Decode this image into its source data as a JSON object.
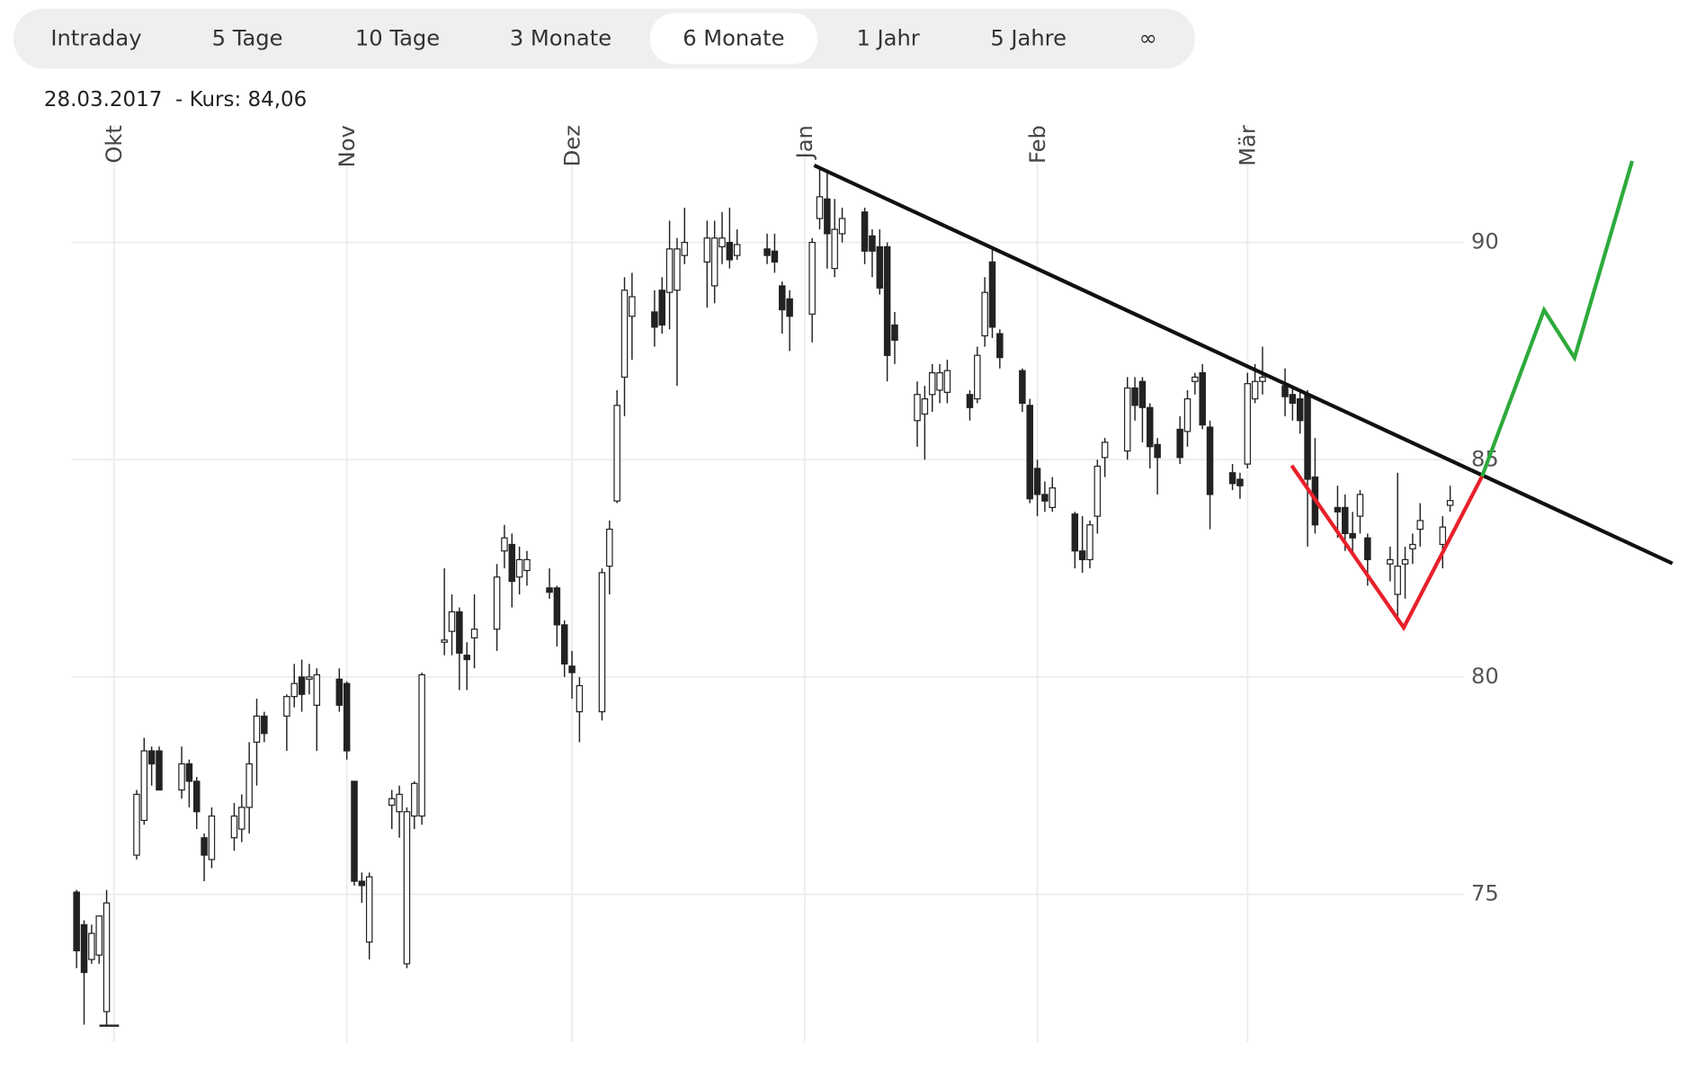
{
  "tabs": [
    "Intraday",
    "5 Tage",
    "10 Tage",
    "3 Monate",
    "6 Monate",
    "1 Jahr",
    "5 Jahre",
    "∞"
  ],
  "active_tab": 4,
  "info": "28.03.2017  - Kurs: 84,06",
  "chart_data": {
    "type": "candlestick",
    "categories": [
      null,
      null,
      null,
      null,
      null,
      "Okt",
      null,
      null,
      null,
      null,
      null,
      null,
      null,
      null,
      null,
      null,
      null,
      null,
      null,
      null,
      null,
      null,
      null,
      null,
      null,
      null,
      null,
      null,
      null,
      null,
      null,
      null,
      null,
      null,
      null,
      null,
      "Nov",
      null,
      null,
      null,
      null,
      null,
      null,
      null,
      null,
      null,
      null,
      null,
      null,
      null,
      null,
      null,
      null,
      null,
      null,
      null,
      null,
      null,
      null,
      null,
      null,
      null,
      null,
      null,
      null,
      null,
      "Dez",
      null,
      null,
      null,
      null,
      null,
      null,
      null,
      null,
      null,
      null,
      null,
      null,
      null,
      null,
      null,
      null,
      null,
      null,
      null,
      null,
      null,
      null,
      null,
      null,
      null,
      null,
      null,
      null,
      null,
      null,
      "Jan",
      null,
      null,
      null,
      null,
      null,
      null,
      null,
      null,
      null,
      null,
      null,
      null,
      null,
      null,
      null,
      null,
      null,
      null,
      null,
      null,
      null,
      null,
      null,
      null,
      null,
      null,
      null,
      null,
      null,
      null,
      "Feb",
      null,
      null,
      null,
      null,
      null,
      null,
      null,
      null,
      null,
      null,
      null,
      null,
      null,
      null,
      null,
      null,
      null,
      null,
      null,
      null,
      null,
      null,
      null,
      null,
      null,
      null,
      null,
      "Mär",
      null,
      null,
      null,
      null,
      null,
      null,
      null,
      null,
      null,
      null,
      null,
      null,
      null,
      null,
      null,
      null,
      null,
      null,
      null,
      null,
      null,
      null,
      null,
      null,
      null,
      null,
      null
    ],
    "open": [
      75.05,
      74.3,
      73.5,
      73.6,
      72.3,
      null,
      null,
      null,
      75.9,
      76.7,
      78.3,
      78.3,
      null,
      null,
      77.4,
      78.0,
      77.6,
      76.3,
      75.8,
      null,
      null,
      76.3,
      76.5,
      77.0,
      78.5,
      79.1,
      null,
      null,
      79.1,
      79.55,
      80.0,
      79.95,
      79.35,
      null,
      null,
      79.95,
      79.85,
      77.6,
      75.3,
      73.9,
      null,
      null,
      77.05,
      76.9,
      73.4,
      76.8,
      76.8,
      null,
      null,
      80.8,
      81.05,
      81.5,
      80.5,
      80.9,
      null,
      null,
      81.1,
      82.9,
      83.05,
      82.3,
      82.45,
      null,
      null,
      82.05,
      82.05,
      81.2,
      80.25,
      79.2,
      null,
      null,
      79.2,
      82.55,
      84.05,
      86.9,
      88.3,
      null,
      null,
      88.4,
      88.9,
      88.85,
      88.9,
      89.7,
      null,
      null,
      89.55,
      89.0,
      89.9,
      90.0,
      89.7,
      null,
      null,
      null,
      89.85,
      89.8,
      89.0,
      88.7,
      null,
      null,
      88.35,
      90.55,
      91.0,
      89.4,
      90.2,
      null,
      null,
      90.7,
      90.15,
      89.9,
      89.9,
      88.1,
      null,
      null,
      85.9,
      86.05,
      86.5,
      86.6,
      86.55,
      null,
      null,
      86.5,
      86.4,
      87.85,
      89.55,
      87.9,
      null,
      null,
      87.05,
      86.25,
      84.8,
      84.2,
      83.9,
      null,
      null,
      83.75,
      82.9,
      82.7,
      83.7,
      85.05,
      null,
      null,
      85.2,
      86.65,
      86.8,
      86.2,
      85.35,
      null,
      null,
      85.7,
      85.65,
      86.8,
      87.0,
      85.75,
      null,
      null,
      84.7,
      84.55,
      84.9,
      86.4,
      86.8,
      null,
      null,
      86.7,
      86.5,
      86.4,
      86.5,
      84.6,
      null,
      null,
      83.9,
      83.9,
      83.3,
      83.7,
      83.2,
      null,
      null,
      82.6,
      81.9,
      82.6,
      82.95,
      83.4,
      null,
      null,
      83.05,
      83.95
    ],
    "high": [
      75.1,
      74.4,
      74.3,
      74.5,
      75.1,
      null,
      null,
      null,
      77.4,
      78.6,
      78.4,
      78.4,
      null,
      null,
      78.4,
      78.1,
      77.7,
      76.4,
      77.0,
      null,
      null,
      77.1,
      77.3,
      78.5,
      79.5,
      79.2,
      null,
      null,
      79.6,
      80.3,
      80.4,
      80.3,
      80.2,
      null,
      null,
      80.2,
      79.9,
      77.6,
      75.5,
      75.5,
      null,
      null,
      77.4,
      77.5,
      77.0,
      77.6,
      80.1,
      null,
      null,
      82.5,
      81.9,
      81.6,
      80.8,
      81.9,
      null,
      null,
      82.6,
      83.5,
      83.3,
      83.0,
      82.9,
      null,
      null,
      82.5,
      82.1,
      81.3,
      80.6,
      80.0,
      null,
      null,
      82.5,
      83.6,
      86.6,
      89.2,
      89.3,
      null,
      null,
      88.9,
      89.2,
      90.5,
      90.1,
      90.8,
      null,
      null,
      90.5,
      90.5,
      90.7,
      90.8,
      90.3,
      null,
      null,
      null,
      90.2,
      90.2,
      89.1,
      88.9,
      null,
      null,
      90.1,
      91.7,
      91.6,
      91.0,
      90.8,
      null,
      null,
      90.8,
      90.3,
      90.3,
      90.0,
      88.4,
      null,
      null,
      86.8,
      86.7,
      87.2,
      87.2,
      87.3,
      null,
      null,
      86.6,
      87.6,
      89.2,
      89.9,
      88.0,
      null,
      null,
      87.1,
      86.4,
      85.0,
      84.5,
      84.6,
      null,
      null,
      83.8,
      83.7,
      83.6,
      85.0,
      85.5,
      null,
      null,
      86.9,
      86.9,
      86.9,
      86.3,
      85.5,
      null,
      null,
      86.0,
      86.6,
      87.0,
      87.2,
      85.9,
      null,
      null,
      84.9,
      84.7,
      87.0,
      87.2,
      87.6,
      null,
      null,
      87.1,
      86.7,
      86.6,
      86.6,
      85.5,
      null,
      null,
      84.4,
      84.2,
      83.8,
      84.3,
      83.3,
      null,
      null,
      83.0,
      84.7,
      83.0,
      83.3,
      84.0,
      null,
      null,
      83.7,
      84.4
    ],
    "low": [
      73.3,
      72.0,
      73.4,
      73.4,
      72.0,
      null,
      null,
      null,
      75.8,
      76.6,
      77.5,
      77.4,
      null,
      null,
      77.2,
      77.0,
      76.5,
      75.3,
      75.6,
      null,
      null,
      76.0,
      76.2,
      76.4,
      77.5,
      78.5,
      null,
      null,
      78.3,
      79.3,
      79.2,
      79.6,
      78.3,
      null,
      null,
      79.2,
      78.1,
      75.2,
      74.8,
      73.5,
      null,
      null,
      76.5,
      76.3,
      73.3,
      76.5,
      76.6,
      null,
      null,
      80.5,
      80.5,
      79.7,
      79.7,
      80.2,
      null,
      null,
      80.6,
      82.5,
      81.6,
      81.9,
      82.1,
      null,
      null,
      81.8,
      80.7,
      80.0,
      79.5,
      78.5,
      null,
      null,
      79.0,
      81.9,
      84.0,
      86.0,
      87.3,
      null,
      null,
      87.6,
      87.9,
      88.0,
      86.7,
      89.5,
      null,
      null,
      88.5,
      88.6,
      89.5,
      89.4,
      89.6,
      null,
      null,
      null,
      89.5,
      89.3,
      87.9,
      87.5,
      null,
      null,
      87.7,
      90.3,
      89.4,
      89.2,
      90.0,
      null,
      null,
      89.5,
      89.2,
      88.8,
      86.8,
      87.2,
      null,
      null,
      85.3,
      85.0,
      86.1,
      86.3,
      86.3,
      null,
      null,
      85.9,
      86.3,
      87.6,
      87.8,
      87.1,
      null,
      null,
      86.1,
      84.0,
      83.7,
      83.8,
      83.8,
      null,
      null,
      82.5,
      82.4,
      82.5,
      83.3,
      84.6,
      null,
      null,
      85.0,
      85.9,
      85.4,
      84.8,
      84.2,
      null,
      null,
      84.9,
      85.3,
      86.5,
      85.7,
      83.4,
      null,
      null,
      84.3,
      84.1,
      84.8,
      86.3,
      86.5,
      null,
      null,
      86.0,
      85.9,
      85.6,
      83.0,
      83.3,
      null,
      null,
      83.2,
      82.9,
      82.8,
      83.3,
      82.1,
      null,
      null,
      82.2,
      81.4,
      81.8,
      82.6,
      83.0,
      null,
      null,
      82.5,
      83.8
    ],
    "close": [
      73.7,
      73.2,
      74.1,
      74.5,
      74.8,
      null,
      null,
      null,
      77.3,
      78.3,
      78.0,
      77.4,
      null,
      null,
      78.0,
      77.6,
      76.9,
      75.9,
      76.8,
      null,
      null,
      76.8,
      77.0,
      78.0,
      79.1,
      78.7,
      null,
      null,
      79.55,
      79.85,
      79.6,
      80.0,
      80.05,
      null,
      null,
      79.35,
      78.3,
      75.3,
      75.2,
      75.4,
      null,
      null,
      77.2,
      77.3,
      76.9,
      77.55,
      80.05,
      null,
      null,
      80.85,
      81.5,
      80.55,
      80.4,
      81.1,
      null,
      null,
      82.3,
      83.2,
      82.2,
      82.7,
      82.7,
      null,
      null,
      81.95,
      81.2,
      80.3,
      80.1,
      79.8,
      null,
      null,
      82.4,
      83.4,
      86.25,
      88.9,
      88.75,
      null,
      null,
      88.05,
      88.1,
      89.85,
      89.85,
      90.0,
      null,
      null,
      90.1,
      90.1,
      90.1,
      89.6,
      89.95,
      null,
      null,
      null,
      89.7,
      89.55,
      88.45,
      88.3,
      null,
      null,
      90.0,
      91.05,
      90.2,
      90.3,
      90.55,
      null,
      null,
      89.8,
      89.8,
      88.95,
      87.4,
      87.75,
      null,
      null,
      86.5,
      86.4,
      87.0,
      87.0,
      87.05,
      null,
      null,
      86.2,
      87.4,
      88.85,
      88.05,
      87.35,
      null,
      null,
      86.3,
      84.1,
      84.2,
      84.05,
      84.35,
      null,
      null,
      82.9,
      82.7,
      83.5,
      84.85,
      85.4,
      null,
      null,
      86.65,
      86.25,
      86.2,
      85.3,
      85.05,
      null,
      null,
      85.05,
      86.4,
      86.9,
      85.8,
      84.2,
      null,
      null,
      84.45,
      84.4,
      86.75,
      86.8,
      86.9,
      null,
      null,
      86.45,
      86.3,
      85.9,
      84.55,
      83.5,
      null,
      null,
      83.8,
      83.3,
      83.2,
      84.2,
      82.7,
      null,
      null,
      82.7,
      82.55,
      82.7,
      83.05,
      83.6,
      null,
      null,
      83.45,
      84.06
    ],
    "ylim": [
      71.6,
      92.7
    ],
    "yticks": [
      75,
      80,
      85,
      90
    ],
    "grid": true,
    "color": "#222222",
    "rising_fill": "#ffffff",
    "falling_fill": "#222222"
  }
}
